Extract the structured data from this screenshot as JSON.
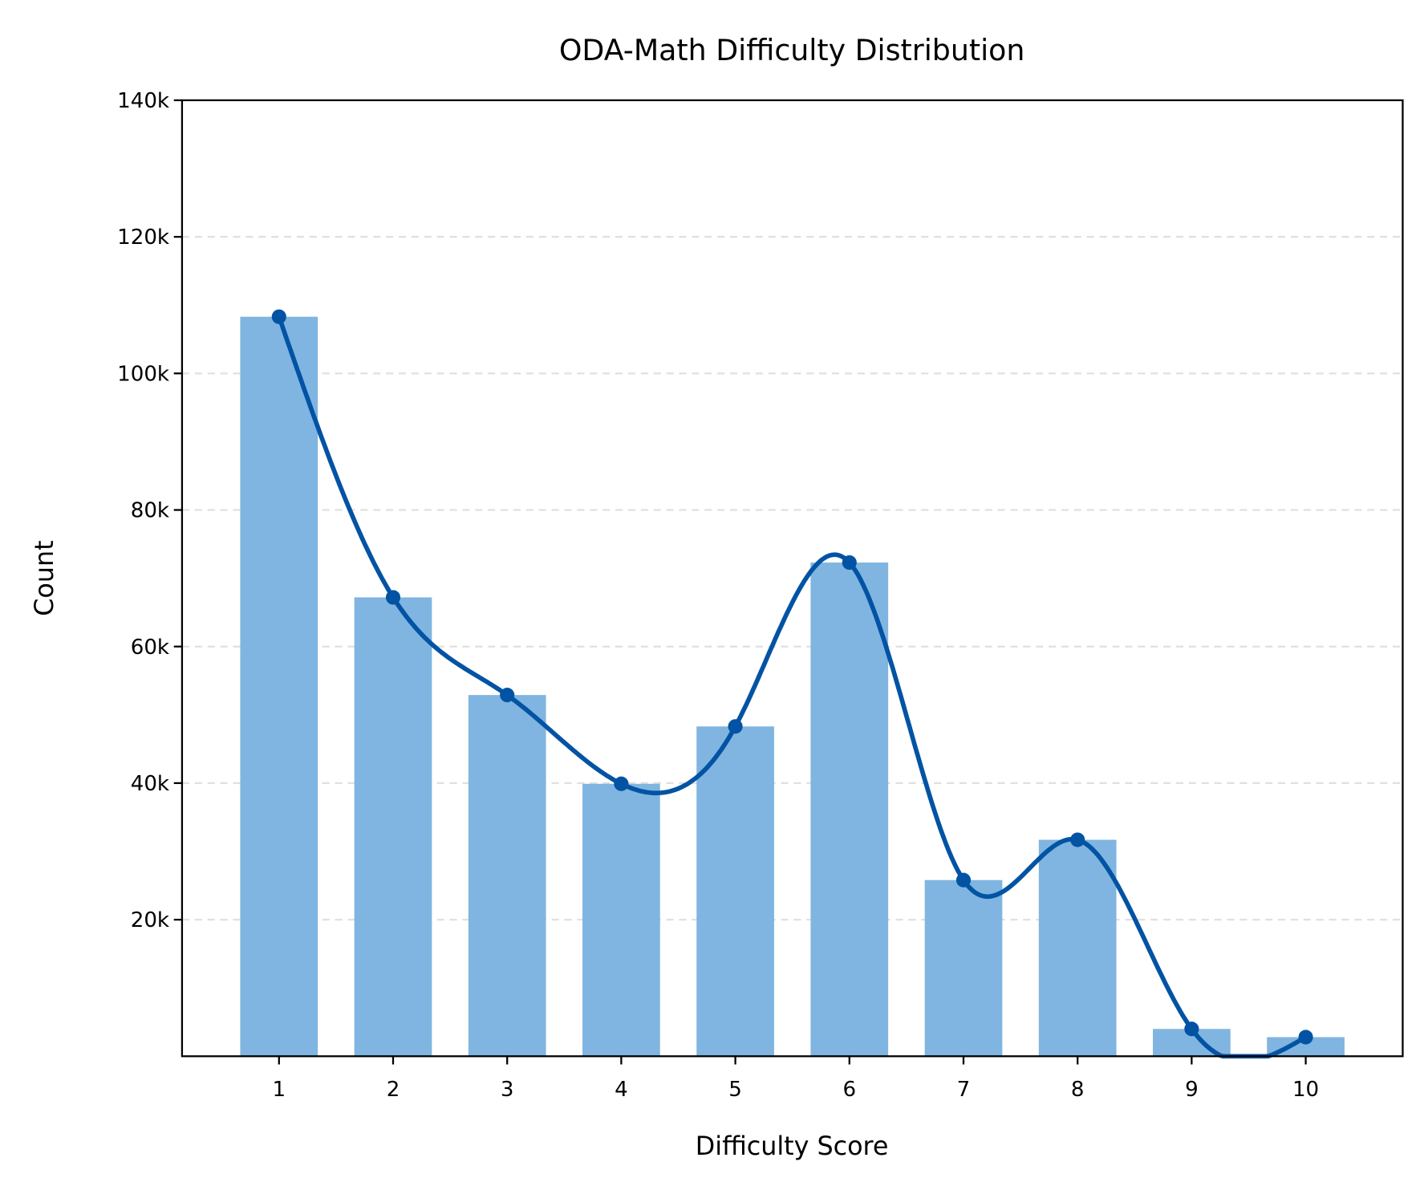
{
  "chart_data": {
    "type": "bar",
    "title": "ODA-Math Difficulty Distribution",
    "xlabel": "Difficulty Score",
    "ylabel": "Count",
    "categories": [
      "1",
      "2",
      "3",
      "4",
      "5",
      "6",
      "7",
      "8",
      "9",
      "10"
    ],
    "x": [
      1,
      2,
      3,
      4,
      5,
      6,
      7,
      8,
      9,
      10
    ],
    "values": [
      108300,
      67200,
      52900,
      39900,
      48300,
      72300,
      25800,
      31700,
      4000,
      2800
    ],
    "overlay": {
      "type": "line",
      "style": "smoothed curve with point markers",
      "clipped_at_zero": true
    },
    "ylim": [
      0,
      140000
    ],
    "xlim": [
      0.15,
      10.85
    ],
    "yticks": [
      20000,
      40000,
      60000,
      80000,
      100000,
      120000,
      140000
    ],
    "ytick_labels": [
      "20k",
      "40k",
      "60k",
      "80k",
      "100k",
      "120k",
      "140k"
    ],
    "grid": "y dashed",
    "legend": "none",
    "colors": {
      "bar": "#7fb5e0",
      "line": "#0353a4"
    }
  }
}
